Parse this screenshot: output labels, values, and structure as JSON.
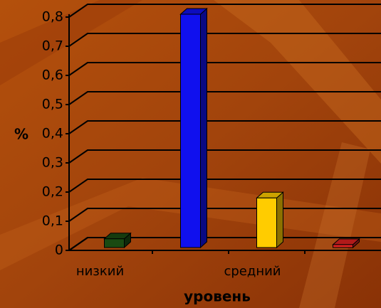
{
  "chart_data": {
    "type": "bar3d",
    "categories": [
      "низкий",
      null,
      "средний",
      null
    ],
    "series": [
      {
        "values": [
          0.03,
          0.8,
          0.17,
          0.01
        ],
        "colors": [
          "#1a4a12",
          "#1010ee",
          "#ffcc00",
          "#dd2020"
        ]
      }
    ],
    "ylim": [
      0,
      0.8
    ],
    "yticks": [
      {
        "value": 0,
        "label": "0"
      },
      {
        "value": 0.1,
        "label": "0,1"
      },
      {
        "value": 0.2,
        "label": "0,2"
      },
      {
        "value": 0.3,
        "label": "0,3"
      },
      {
        "value": 0.4,
        "label": "0,4"
      },
      {
        "value": 0.5,
        "label": "0,5"
      },
      {
        "value": 0.6,
        "label": "0,6"
      },
      {
        "value": 0.7,
        "label": "0,7"
      },
      {
        "value": 0.8,
        "label": "0,8"
      }
    ],
    "y_label": "%",
    "x_label": "уровень",
    "grid": true
  }
}
